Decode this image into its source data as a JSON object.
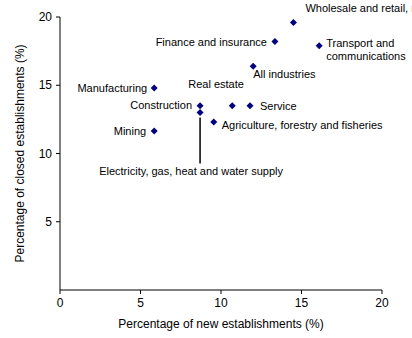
{
  "chart_data": {
    "type": "scatter",
    "x_label": "Percentage of new establishments (%)",
    "y_label": "Percentage of closed establishments (%)",
    "labels": [
      "Wholesale and retail, restaurants",
      "Finance and insurance",
      "Transport and communications",
      "All industries",
      "Manufacturing",
      "Real estate",
      "Service",
      "Construction",
      "Electricity, gas, heat and water supply",
      "Mining",
      "Agriculture, forestry and fisheries"
    ],
    "x": [
      14.5,
      13.35,
      16.1,
      12.0,
      5.85,
      10.7,
      11.8,
      8.7,
      8.7,
      5.85,
      9.55
    ],
    "values": [
      19.6,
      18.2,
      17.9,
      16.4,
      14.8,
      13.5,
      13.5,
      13.5,
      13.0,
      11.65,
      12.3
    ],
    "color": "#000080",
    "marker": "diamond",
    "xlim": [
      0,
      20
    ],
    "xticks": [
      0,
      5,
      10,
      15,
      20
    ],
    "ylim": [
      0,
      20
    ],
    "yticks": [
      5,
      10,
      15,
      20
    ],
    "grid": false
  }
}
